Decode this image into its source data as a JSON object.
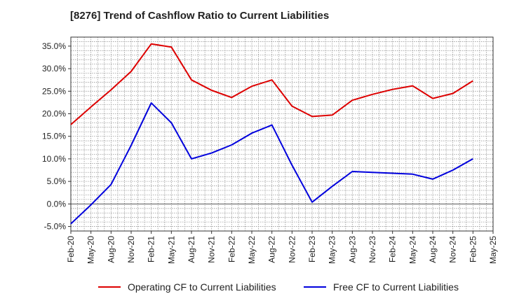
{
  "chart_data": {
    "type": "line",
    "title": "[8276]  Trend of Cashflow Ratio to Current Liabilities",
    "xlabel": "",
    "ylabel": "",
    "x": [
      "Feb-20",
      "May-20",
      "Aug-20",
      "Nov-20",
      "Feb-21",
      "May-21",
      "Aug-21",
      "Nov-21",
      "Feb-22",
      "May-22",
      "Aug-22",
      "Nov-22",
      "Feb-23",
      "May-23",
      "Aug-23",
      "Nov-23",
      "Feb-24",
      "May-24",
      "Aug-24",
      "Nov-24",
      "Feb-25",
      "May-25"
    ],
    "ylim": [
      -6.0,
      37.0
    ],
    "yticks": [
      35.0,
      30.0,
      25.0,
      20.0,
      15.0,
      10.0,
      5.0,
      0.0,
      -5.0
    ],
    "ytick_labels": [
      "35.0%",
      "30.0%",
      "25.0%",
      "20.0%",
      "15.0%",
      "10.0%",
      "5.0%",
      "0.0%",
      "-5.0%"
    ],
    "grid": true,
    "legend_position": "bottom",
    "series": [
      {
        "name": "Operating CF to Current Liabilities",
        "color": "#dd0000",
        "values": [
          17.6,
          21.5,
          25.3,
          29.4,
          35.5,
          34.8,
          27.5,
          25.2,
          23.6,
          26.1,
          27.5,
          21.7,
          19.4,
          19.7,
          23.0,
          24.3,
          25.4,
          26.2,
          23.4,
          24.5,
          27.3,
          null
        ]
      },
      {
        "name": "Free CF to Current Liabilities",
        "color": "#0000dd",
        "values": [
          -4.4,
          -0.2,
          4.3,
          13.0,
          22.4,
          18.0,
          10.0,
          11.3,
          13.1,
          15.7,
          17.5,
          8.6,
          0.4,
          3.9,
          7.2,
          7.0,
          6.8,
          6.6,
          5.5,
          7.5,
          10.0,
          null
        ]
      }
    ]
  }
}
